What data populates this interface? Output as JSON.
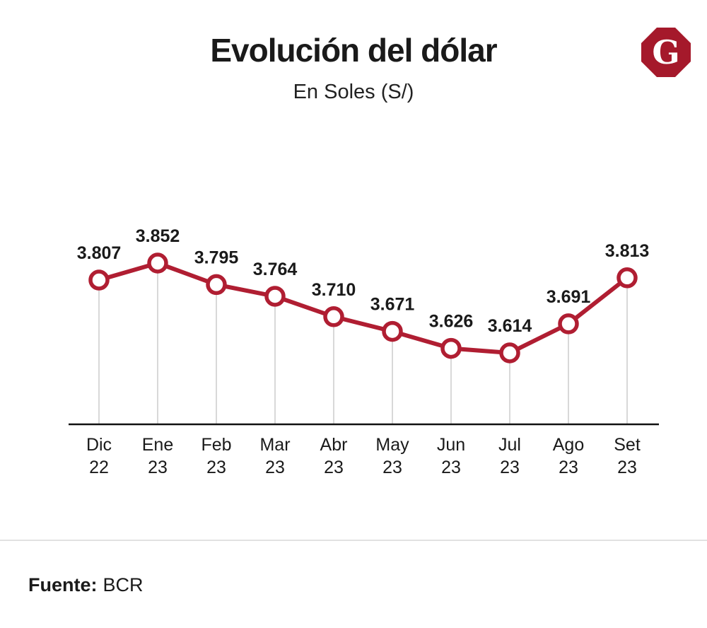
{
  "header": {
    "title": "Evolución del dólar",
    "subtitle": "En Soles (S/)",
    "logo_letter": "G"
  },
  "footer": {
    "source_label": "Fuente:",
    "source_value": "BCR"
  },
  "colors": {
    "line": "#B01E32",
    "marker_fill": "#ffffff",
    "logo": "#A5192B",
    "gridline": "#cccccc",
    "axis": "#111111",
    "text": "#1a1a1a"
  },
  "chart_data": {
    "type": "line",
    "title": "Evolución del dólar",
    "subtitle": "En Soles (S/)",
    "categories": [
      "Dic 22",
      "Ene 23",
      "Feb 23",
      "Mar 23",
      "Abr 23",
      "May 23",
      "Jun 23",
      "Jul 23",
      "Ago 23",
      "Set 23"
    ],
    "values": [
      3.807,
      3.852,
      3.795,
      3.764,
      3.71,
      3.671,
      3.626,
      3.614,
      3.691,
      3.813
    ],
    "labels": [
      "3.807",
      "3.852",
      "3.795",
      "3.764",
      "3.710",
      "3.671",
      "3.626",
      "3.614",
      "3.691",
      "3.813"
    ],
    "ylim": [
      3.614,
      3.852
    ],
    "xlabel": "",
    "ylabel": "",
    "grid": "vertical-droplines",
    "legend": "none",
    "source": "Fuente: BCR"
  }
}
